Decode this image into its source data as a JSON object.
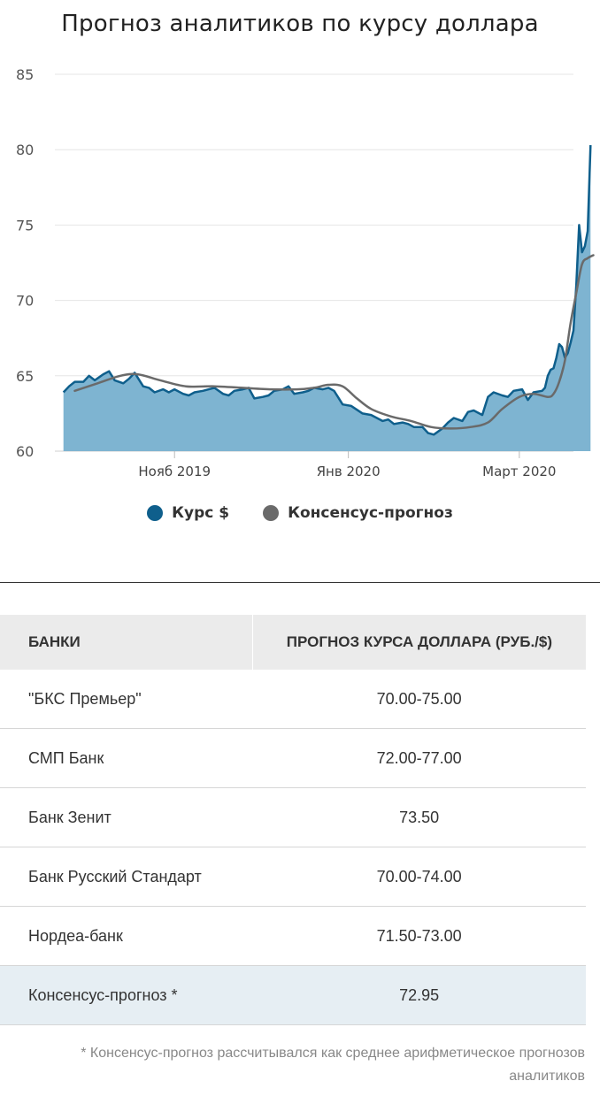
{
  "chart_data": {
    "type": "area",
    "title": "Прогноз аналитиков по курсу доллара",
    "ylim": [
      60,
      85
    ],
    "yticks": [
      60,
      65,
      70,
      75,
      80,
      85
    ],
    "xticks": [
      {
        "label": "Нояб 2019",
        "date": "2019-11-01"
      },
      {
        "label": "Янв 2020",
        "date": "2020-01-01"
      },
      {
        "label": "Март 2020",
        "date": "2020-03-01"
      }
    ],
    "xlim": [
      "2019-09-20",
      "2020-03-20"
    ],
    "grid": true,
    "legend_position": "bottom",
    "series": [
      {
        "name": "Курс $",
        "color": "#0f5f8c",
        "fill": "#7eb4d1",
        "points": [
          [
            "2019-09-23",
            63.9
          ],
          [
            "2019-09-25",
            64.3
          ],
          [
            "2019-09-27",
            64.6
          ],
          [
            "2019-09-30",
            64.6
          ],
          [
            "2019-10-02",
            65.0
          ],
          [
            "2019-10-04",
            64.7
          ],
          [
            "2019-10-07",
            65.1
          ],
          [
            "2019-10-09",
            65.3
          ],
          [
            "2019-10-11",
            64.7
          ],
          [
            "2019-10-14",
            64.5
          ],
          [
            "2019-10-16",
            64.8
          ],
          [
            "2019-10-18",
            65.2
          ],
          [
            "2019-10-21",
            64.3
          ],
          [
            "2019-10-23",
            64.2
          ],
          [
            "2019-10-25",
            63.9
          ],
          [
            "2019-10-28",
            64.1
          ],
          [
            "2019-10-30",
            63.9
          ],
          [
            "2019-11-01",
            64.1
          ],
          [
            "2019-11-04",
            63.8
          ],
          [
            "2019-11-06",
            63.7
          ],
          [
            "2019-11-08",
            63.9
          ],
          [
            "2019-11-11",
            64.0
          ],
          [
            "2019-11-13",
            64.1
          ],
          [
            "2019-11-15",
            64.2
          ],
          [
            "2019-11-18",
            63.8
          ],
          [
            "2019-11-20",
            63.7
          ],
          [
            "2019-11-22",
            64.0
          ],
          [
            "2019-11-25",
            64.1
          ],
          [
            "2019-11-27",
            64.2
          ],
          [
            "2019-11-29",
            63.5
          ],
          [
            "2019-12-02",
            63.6
          ],
          [
            "2019-12-04",
            63.7
          ],
          [
            "2019-12-06",
            64.0
          ],
          [
            "2019-12-09",
            64.1
          ],
          [
            "2019-12-11",
            64.3
          ],
          [
            "2019-12-13",
            63.8
          ],
          [
            "2019-12-16",
            63.9
          ],
          [
            "2019-12-18",
            64.0
          ],
          [
            "2019-12-20",
            64.2
          ],
          [
            "2019-12-23",
            64.1
          ],
          [
            "2019-12-25",
            64.2
          ],
          [
            "2019-12-27",
            64.0
          ],
          [
            "2019-12-30",
            63.1
          ],
          [
            "2020-01-02",
            63.0
          ],
          [
            "2020-01-06",
            62.5
          ],
          [
            "2020-01-09",
            62.4
          ],
          [
            "2020-01-13",
            62.0
          ],
          [
            "2020-01-15",
            62.1
          ],
          [
            "2020-01-17",
            61.8
          ],
          [
            "2020-01-20",
            61.9
          ],
          [
            "2020-01-22",
            61.8
          ],
          [
            "2020-01-24",
            61.6
          ],
          [
            "2020-01-27",
            61.6
          ],
          [
            "2020-01-29",
            61.2
          ],
          [
            "2020-01-31",
            61.1
          ],
          [
            "2020-02-03",
            61.5
          ],
          [
            "2020-02-05",
            61.9
          ],
          [
            "2020-02-07",
            62.2
          ],
          [
            "2020-02-10",
            62.0
          ],
          [
            "2020-02-12",
            62.6
          ],
          [
            "2020-02-14",
            62.7
          ],
          [
            "2020-02-17",
            62.4
          ],
          [
            "2020-02-19",
            63.6
          ],
          [
            "2020-02-21",
            63.9
          ],
          [
            "2020-02-24",
            63.7
          ],
          [
            "2020-02-26",
            63.6
          ],
          [
            "2020-02-28",
            64.0
          ],
          [
            "2020-03-02",
            64.1
          ],
          [
            "2020-03-04",
            63.4
          ],
          [
            "2020-03-06",
            63.9
          ],
          [
            "2020-03-09",
            64.0
          ],
          [
            "2020-03-10",
            64.2
          ],
          [
            "2020-03-11",
            65.0
          ],
          [
            "2020-03-12",
            65.4
          ],
          [
            "2020-03-13",
            65.5
          ],
          [
            "2020-03-14",
            66.2
          ],
          [
            "2020-03-15",
            67.1
          ],
          [
            "2020-03-16",
            66.9
          ],
          [
            "2020-03-17",
            66.2
          ],
          [
            "2020-03-18",
            66.5
          ],
          [
            "2020-03-19",
            67.2
          ],
          [
            "2020-03-20",
            68.0
          ],
          [
            "2020-03-21",
            71.0
          ],
          [
            "2020-03-22",
            75.0
          ],
          [
            "2020-03-23",
            73.2
          ],
          [
            "2020-03-24",
            73.6
          ],
          [
            "2020-03-25",
            74.6
          ],
          [
            "2020-03-26",
            80.3
          ]
        ]
      },
      {
        "name": "Консенсус-прогноз",
        "color": "#6a6a6a",
        "points": [
          [
            "2019-09-27",
            64.0
          ],
          [
            "2019-10-05",
            64.5
          ],
          [
            "2019-10-13",
            65.0
          ],
          [
            "2019-10-19",
            65.1
          ],
          [
            "2019-10-27",
            64.7
          ],
          [
            "2019-11-05",
            64.3
          ],
          [
            "2019-11-15",
            64.3
          ],
          [
            "2019-11-25",
            64.2
          ],
          [
            "2019-12-05",
            64.1
          ],
          [
            "2019-12-14",
            64.1
          ],
          [
            "2019-12-20",
            64.2
          ],
          [
            "2019-12-25",
            64.4
          ],
          [
            "2019-12-30",
            64.3
          ],
          [
            "2020-01-04",
            63.5
          ],
          [
            "2020-01-09",
            62.8
          ],
          [
            "2020-01-16",
            62.3
          ],
          [
            "2020-01-23",
            62.0
          ],
          [
            "2020-01-30",
            61.6
          ],
          [
            "2020-02-06",
            61.5
          ],
          [
            "2020-02-13",
            61.6
          ],
          [
            "2020-02-19",
            61.9
          ],
          [
            "2020-02-24",
            62.8
          ],
          [
            "2020-03-01",
            63.6
          ],
          [
            "2020-03-06",
            63.8
          ],
          [
            "2020-03-11",
            63.6
          ],
          [
            "2020-03-13",
            63.8
          ],
          [
            "2020-03-15",
            64.6
          ],
          [
            "2020-03-17",
            66.0
          ],
          [
            "2020-03-19",
            68.5
          ],
          [
            "2020-03-21",
            70.5
          ],
          [
            "2020-03-23",
            72.4
          ],
          [
            "2020-03-25",
            72.8
          ],
          [
            "2020-03-27",
            73.0
          ]
        ]
      }
    ]
  },
  "table": {
    "headers": [
      "Банки",
      "Прогноз курса доллара (руб./$)"
    ],
    "rows": [
      {
        "bank": "\"БКС Премьер\"",
        "value": "70.00-75.00"
      },
      {
        "bank": "СМП Банк",
        "value": "72.00-77.00"
      },
      {
        "bank": "Банк Зенит",
        "value": "73.50"
      },
      {
        "bank": "Банк Русский Стандарт",
        "value": "70.00-74.00"
      },
      {
        "bank": "Нордеа-банк",
        "value": "71.50-73.00"
      },
      {
        "bank": "Консенсус-прогноз *",
        "value": "72.95"
      }
    ]
  },
  "footnote": "* Консенсус-прогноз рассчитывался как среднее арифметическое прогнозов аналитиков"
}
